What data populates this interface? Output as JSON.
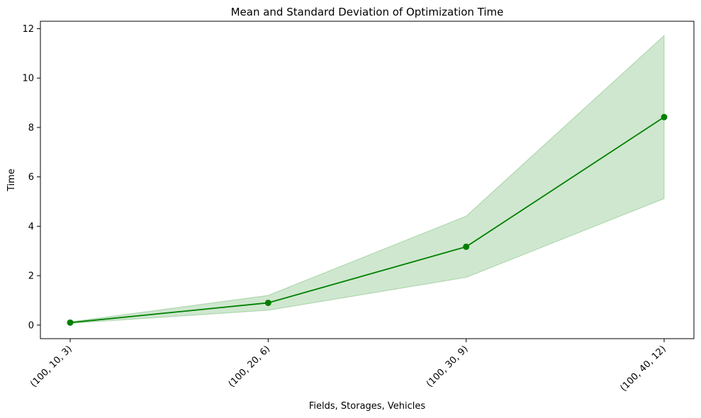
{
  "chart_data": {
    "type": "line",
    "title": "Mean and Standard Deviation of Optimization Time",
    "xlabel": "Fields, Storages, Vehicles",
    "ylabel": "Time",
    "categories": [
      "(100, 10, 3)",
      "(100, 20, 6)",
      "(100, 30, 9)",
      "(100, 40, 12)"
    ],
    "series": [
      {
        "values": [
          0.1,
          0.9,
          3.17,
          8.42
        ],
        "std_lower": [
          0.07,
          0.6,
          1.93,
          5.12
        ],
        "std_upper": [
          0.13,
          1.2,
          4.41,
          11.72
        ]
      }
    ],
    "ylim": [
      -0.55,
      12.3
    ],
    "yticks": [
      0,
      2,
      4,
      6,
      8,
      10,
      12
    ],
    "grid": false,
    "colors": {
      "line": "#008000",
      "band": "#008000"
    }
  }
}
